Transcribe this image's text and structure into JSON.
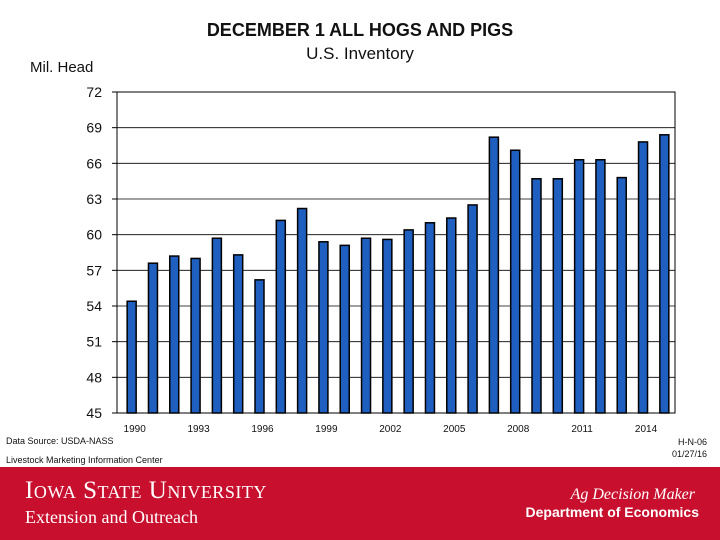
{
  "chart_data": {
    "type": "bar",
    "title": "DECEMBER 1 ALL HOGS AND PIGS",
    "subtitle": "U.S. Inventory",
    "ylabel": "Mil. Head",
    "xlabel": "",
    "ylim": [
      45,
      72
    ],
    "yticks": [
      45,
      48,
      51,
      54,
      57,
      60,
      63,
      66,
      69,
      72
    ],
    "grid": true,
    "x_tick_labels": [
      "1990",
      "1993",
      "1996",
      "1999",
      "2002",
      "2005",
      "2008",
      "2011",
      "2014"
    ],
    "categories": [
      1990,
      1991,
      1992,
      1993,
      1994,
      1995,
      1996,
      1997,
      1998,
      1999,
      2000,
      2001,
      2002,
      2003,
      2004,
      2005,
      2006,
      2007,
      2008,
      2009,
      2010,
      2011,
      2012,
      2013,
      2014,
      2015
    ],
    "values": [
      54.4,
      57.6,
      58.2,
      58.0,
      59.7,
      58.3,
      56.2,
      61.2,
      62.2,
      59.4,
      59.1,
      59.7,
      59.6,
      60.4,
      61.0,
      61.4,
      62.5,
      68.2,
      67.1,
      64.7,
      64.7,
      66.3,
      66.3,
      64.8,
      67.8,
      68.4
    ],
    "bar_color": "#1f5fbf",
    "bar_edge_color": "#000000"
  },
  "footer": {
    "source": "Data Source:  USDA-NASS",
    "center": "Livestock Marketing Information Center",
    "code": "H-N-06",
    "date": "01/27/16"
  },
  "banner": {
    "university": "Iowa State University",
    "unit": "Extension and Outreach",
    "program": "Ag Decision Maker",
    "department": "Department of Economics",
    "color": "#c8102e"
  }
}
